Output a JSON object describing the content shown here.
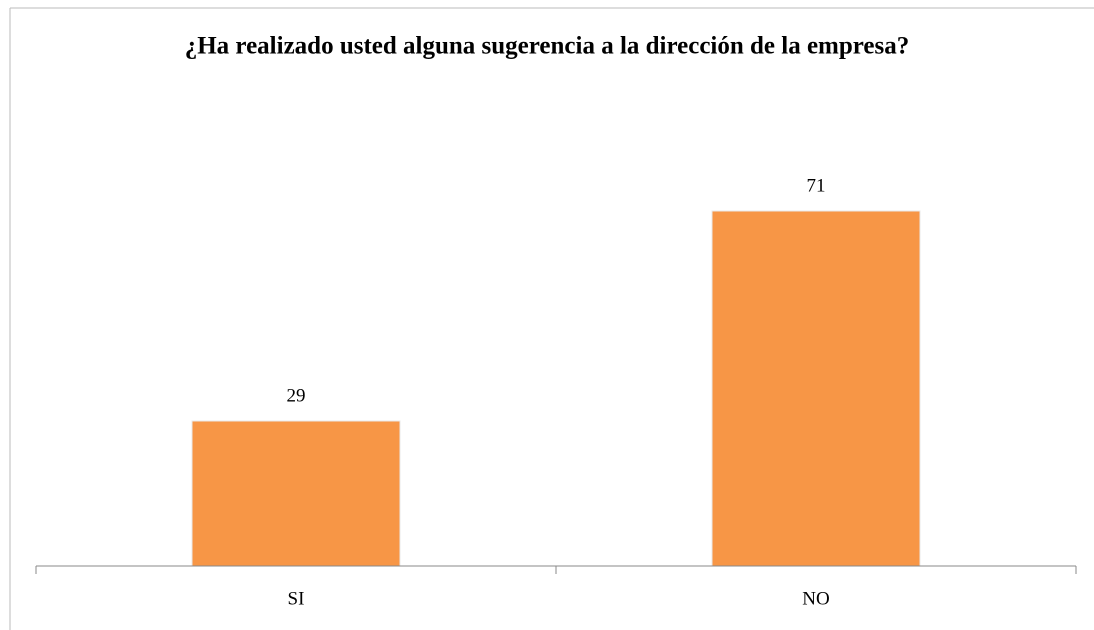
{
  "chart_data": {
    "type": "bar",
    "title": "¿Ha realizado usted alguna sugerencia a la dirección de la empresa?",
    "categories": [
      "SI",
      "NO"
    ],
    "values": [
      29,
      71
    ],
    "color": "#f79646",
    "ylim": [
      0,
      80
    ],
    "grid": false
  }
}
